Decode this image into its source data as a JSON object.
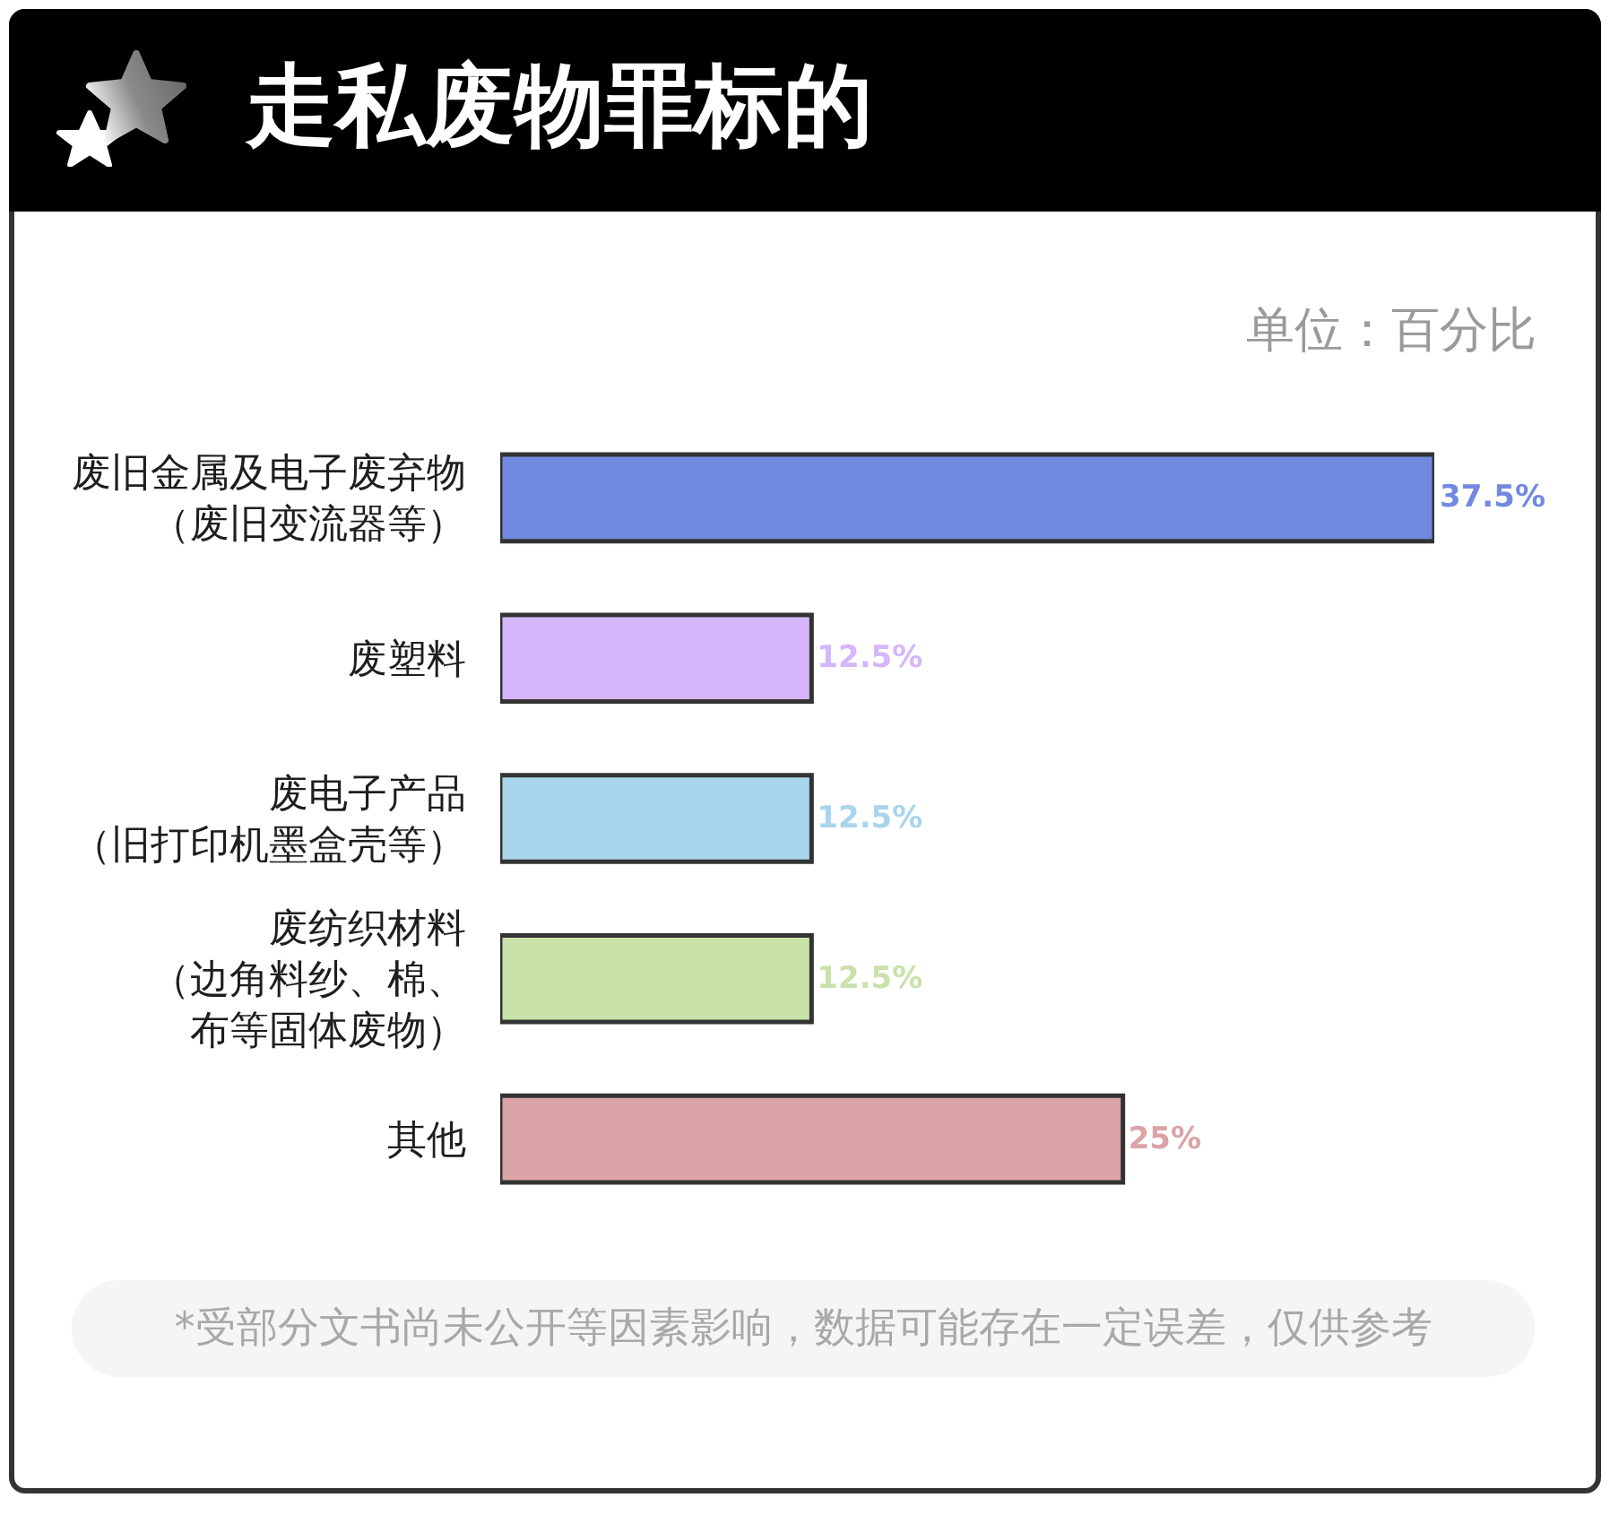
{
  "chart_data": {
    "type": "bar",
    "orientation": "horizontal",
    "title": "走私废物罪标的",
    "categories": [
      "废旧金属及电子废弃物（废旧变流器等）",
      "废塑料",
      "废电子产品（旧打印机墨盒壳等）",
      "废纺织材料（边角料纱、棉、布等固体废物）",
      "其他"
    ],
    "values": [
      37.5,
      12.5,
      12.5,
      12.5,
      25
    ],
    "colors": [
      "#7189e1",
      "#d5b6fb",
      "#a9d5ec",
      "#c9e2a9",
      "#daa3a6"
    ],
    "value_labels": [
      "37.5%",
      "12.5%",
      "12.5%",
      "12.5%",
      "25%"
    ],
    "annotations": [
      "单位：百分比",
      "*受部分文书尚未公开等因素影响，数据可能存在一定误差，仅供参考"
    ],
    "tick_labels": "y"
  }
}
